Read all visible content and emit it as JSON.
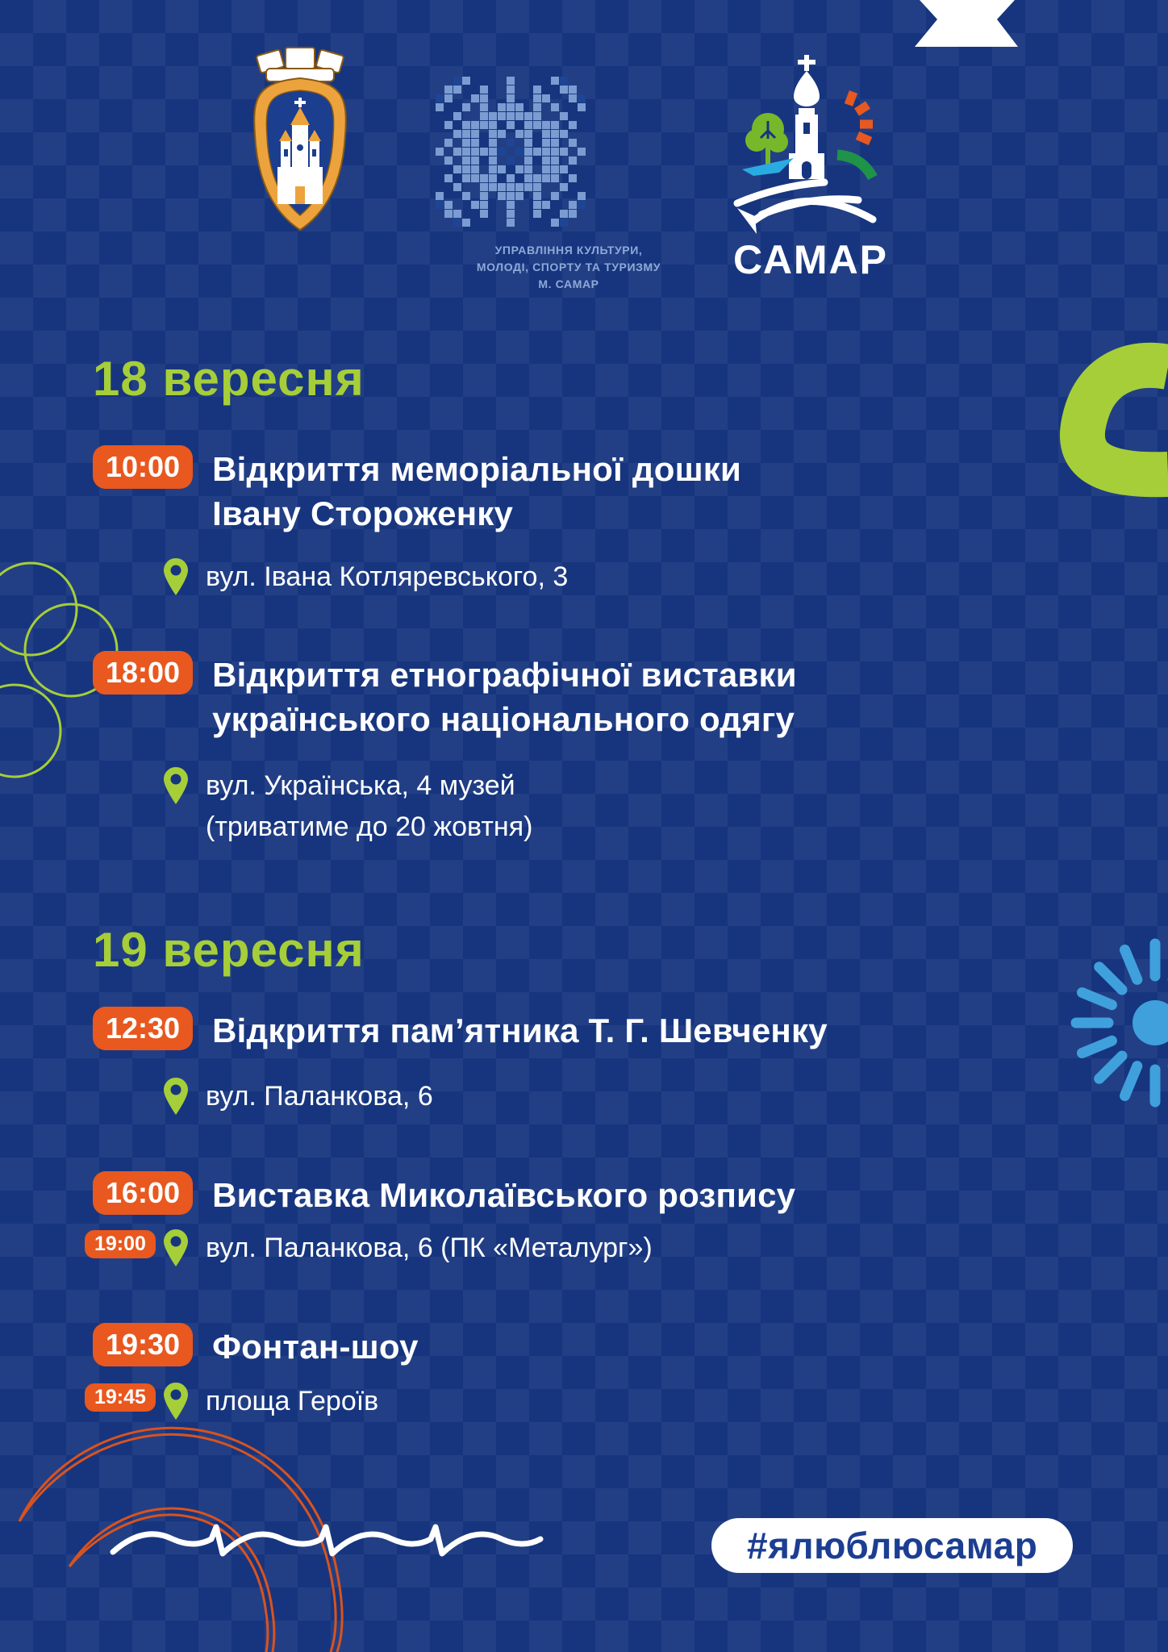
{
  "header": {
    "department_caption": "УПРАВЛІННЯ КУЛЬТУРИ,\nМОЛОДІ, СПОРТУ ТА ТУРИЗМУ\nМ. САМАР",
    "city_logo_caption": "САМАР"
  },
  "days": [
    {
      "date": "18 вересня",
      "events": [
        {
          "times": [
            "10:00"
          ],
          "title": "Відкриття меморіальної дошки\nІвану Стороженку",
          "location": "вул. Івана Котляревського, 3"
        },
        {
          "times": [
            "18:00"
          ],
          "title": "Відкриття етнографічної виставки\nукраїнського національного одягу",
          "location": "вул. Українська, 4 музей\n(триватиме до 20 жовтня)"
        }
      ]
    },
    {
      "date": "19 вересня",
      "events": [
        {
          "times": [
            "12:30"
          ],
          "title": "Відкриття пам’ятника Т. Г. Шевченку",
          "location": "вул. Паланкова, 6"
        },
        {
          "times": [
            "16:00",
            "19:00"
          ],
          "title": "Виставка Миколаївського розпису",
          "location": "вул. Паланкова, 6 (ПК «Металург»)"
        },
        {
          "times": [
            "19:30",
            "19:45"
          ],
          "title": "Фонтан-шоу",
          "location": "площа Героїв"
        }
      ]
    }
  ],
  "footer": {
    "hashtag": "#ялюблюсамар"
  },
  "colors": {
    "background": "#16357e",
    "accent_orange": "#e8581f",
    "accent_lime": "#a6ce39",
    "pattern_blue": "#7b9cd1",
    "hashtag_blue": "#1c3e92",
    "caption_blue": "#8ea9d9",
    "white": "#ffffff"
  }
}
